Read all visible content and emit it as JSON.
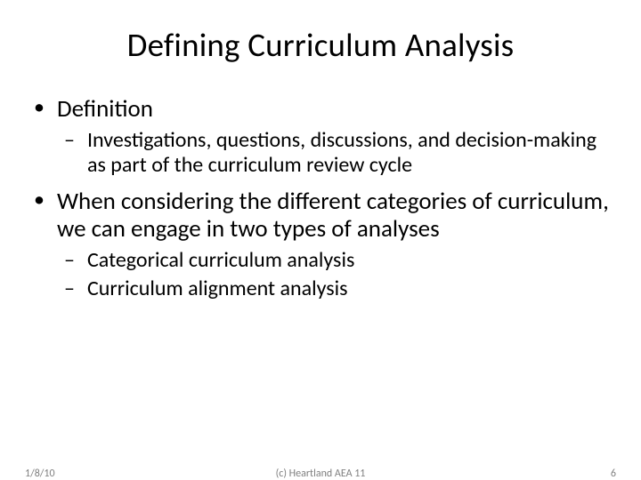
{
  "background_color": "#ffffff",
  "text_color": "#000000",
  "footer_color": "#7f7f7f",
  "title_fontsize": 37,
  "body_fontsize": 27,
  "sub_fontsize": 24,
  "footer_fontsize": 12,
  "title": "Defining Curriculum Analysis",
  "bullets": [
    {
      "text": "Definition",
      "sub": [
        "Investigations, questions, discussions, and decision-making as part of the curriculum review cycle"
      ]
    },
    {
      "text": "When considering the different categories of curriculum, we can engage in two types of analyses",
      "sub": [
        "Categorical curriculum analysis",
        "Curriculum alignment analysis"
      ]
    }
  ],
  "footer": {
    "date": "1/8/10",
    "copyright": "(c) Heartland AEA 11",
    "page": "6"
  }
}
